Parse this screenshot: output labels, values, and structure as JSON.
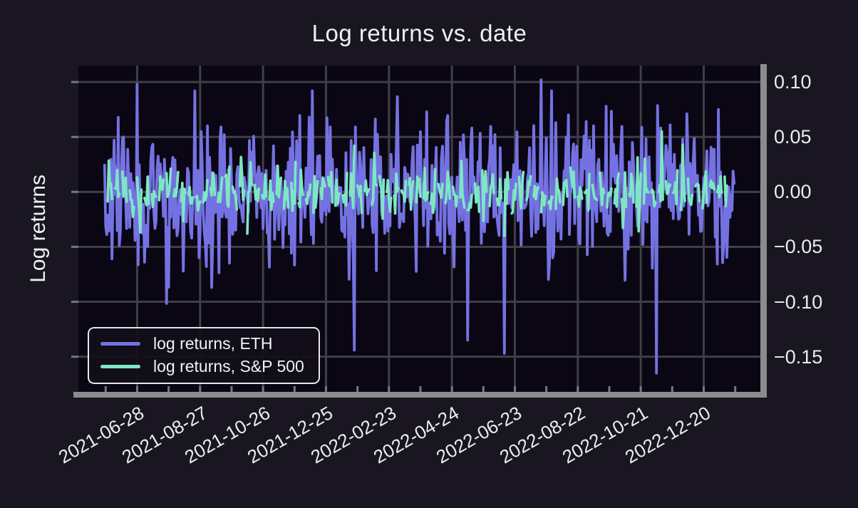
{
  "theme": {
    "background": "#191622",
    "plot_background": "#0b0614",
    "grid_color": "#3f3f46",
    "spine_color": "#8c8c8c",
    "tick_mark_color": "#77777e",
    "text_color": "#f0f0f0",
    "legend_border_color": "#e8e8e8"
  },
  "chart_data": {
    "type": "line",
    "title": "Log returns vs. date",
    "xlabel": "",
    "ylabel": "Log returns",
    "grid": true,
    "legend_position": "lower left",
    "x_axis": {
      "start_date": "2021-05-03",
      "total_days": 650,
      "tick_interval_days": 60,
      "ticks": [
        {
          "day": 56,
          "label": "2021-06-28"
        },
        {
          "day": 116,
          "label": "2021-08-27"
        },
        {
          "day": 176,
          "label": "2021-10-26"
        },
        {
          "day": 236,
          "label": "2021-12-25"
        },
        {
          "day": 296,
          "label": "2022-02-23"
        },
        {
          "day": 356,
          "label": "2022-04-24"
        },
        {
          "day": 416,
          "label": "2022-06-23"
        },
        {
          "day": 476,
          "label": "2022-08-22"
        },
        {
          "day": 536,
          "label": "2022-10-21"
        },
        {
          "day": 596,
          "label": "2022-12-20"
        }
      ],
      "minor_tick_start_day": 26,
      "minor_tick_interval_days": 30
    },
    "y_axis": {
      "min": -0.182,
      "max": 0.115,
      "ticks": [
        {
          "value": 0.1,
          "label": "0.10"
        },
        {
          "value": 0.05,
          "label": "0.05"
        },
        {
          "value": 0.0,
          "label": "0.00"
        },
        {
          "value": -0.05,
          "label": "−0.05"
        },
        {
          "value": -0.1,
          "label": "−0.10"
        },
        {
          "value": -0.15,
          "label": "−0.15"
        }
      ]
    },
    "series": [
      {
        "id": "eth",
        "name": "log returns, ETH",
        "color": "#7472e2",
        "line_width": 3.8,
        "frequency": "daily",
        "start_day": 25,
        "end_day": 625,
        "stdev": 0.03,
        "vol_boost": {
          "from_day": 25,
          "to_day": 135,
          "mult": 1.2
        },
        "fat_tail_prob": 0.05,
        "fat_tail_mult": 1.8,
        "clip": [
          -0.125,
          0.092
        ],
        "seed": 1337,
        "notable_points": [
          {
            "date": "2021-06-28",
            "day": 56,
            "value": 0.098
          },
          {
            "date": "2021-09-07",
            "day": 127,
            "value": -0.087
          },
          {
            "date": "2022-01-21",
            "day": 263,
            "value": -0.144
          },
          {
            "date": "2022-05-09",
            "day": 371,
            "value": -0.135
          },
          {
            "date": "2022-06-13",
            "day": 406,
            "value": -0.147
          },
          {
            "date": "2022-07-18",
            "day": 441,
            "value": 0.102
          },
          {
            "date": "2022-11-05",
            "day": 551,
            "value": -0.165
          },
          {
            "date": "2023-01-03",
            "day": 610,
            "value": 0.075
          }
        ]
      },
      {
        "id": "sp500",
        "name": "log returns, S&P 500",
        "color": "#7ee6c3",
        "line_width": 3.6,
        "frequency": "weekdays",
        "start_day": 25,
        "end_day": 618,
        "stdev": 0.011,
        "fat_tail_prob": 0.06,
        "fat_tail_mult": 1.6,
        "clip": [
          -0.041,
          0.042
        ],
        "seed": 2029,
        "notable_points": [
          {
            "date": "2022-06-13",
            "day": 406,
            "value": -0.04
          },
          {
            "date": "2022-11-10",
            "day": 556,
            "value": 0.055
          },
          {
            "date": "2022-11-30",
            "day": 576,
            "value": 0.043
          }
        ]
      }
    ]
  }
}
